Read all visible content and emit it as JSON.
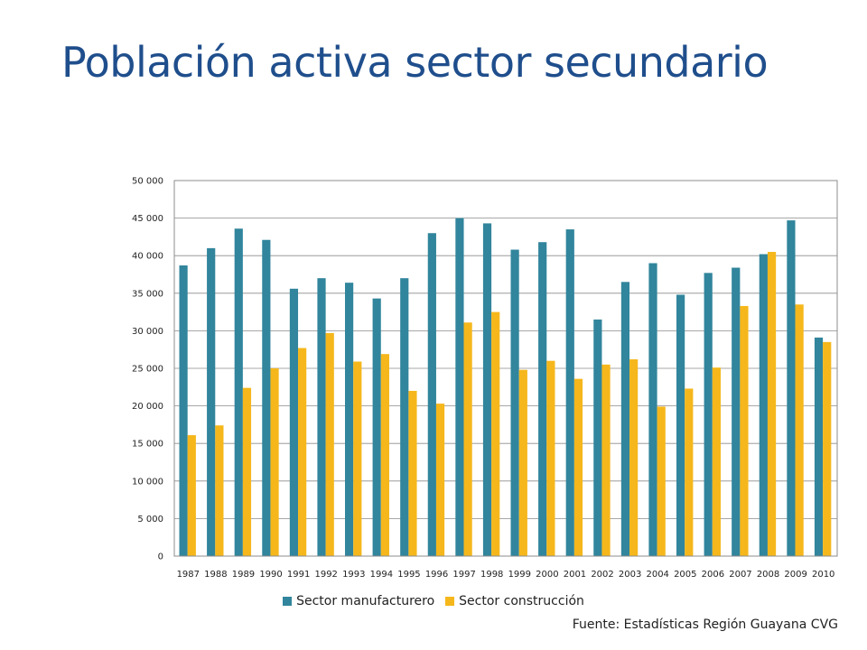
{
  "slide": {
    "title": "Población activa sector secundario",
    "source": "Fuente: Estadísticas Región Guayana CVG"
  },
  "chart_data": {
    "type": "bar",
    "categories": [
      "1987",
      "1988",
      "1989",
      "1990",
      "1991",
      "1992",
      "1993",
      "1994",
      "1995",
      "1996",
      "1997",
      "1998",
      "1999",
      "2000",
      "2001",
      "2002",
      "2003",
      "2004",
      "2005",
      "2006",
      "2007",
      "2008",
      "2009",
      "2010"
    ],
    "series": [
      {
        "name": "Sector manufacturero",
        "color": "#31859c",
        "values": [
          38700,
          41000,
          43600,
          42100,
          35600,
          37000,
          36400,
          34300,
          37000,
          43000,
          45000,
          44300,
          40800,
          41800,
          43500,
          31500,
          36500,
          39000,
          34800,
          37700,
          38400,
          40200,
          44700,
          29100
        ]
      },
      {
        "name": "Sector construcción",
        "color": "#f5b71b",
        "values": [
          16100,
          17400,
          22400,
          25000,
          27700,
          29700,
          25900,
          26900,
          22000,
          20300,
          31100,
          32500,
          24800,
          26000,
          23600,
          25500,
          26200,
          19900,
          22300,
          25100,
          33300,
          40500,
          33500,
          28500
        ]
      }
    ],
    "yticks": [
      "0",
      "5 000",
      "10 000",
      "15 000",
      "20 000",
      "25 000",
      "30 000",
      "35 000",
      "40 000",
      "45 000",
      "50 000"
    ],
    "ylim": [
      0,
      50000
    ],
    "grid": true,
    "legend_position": "bottom"
  }
}
